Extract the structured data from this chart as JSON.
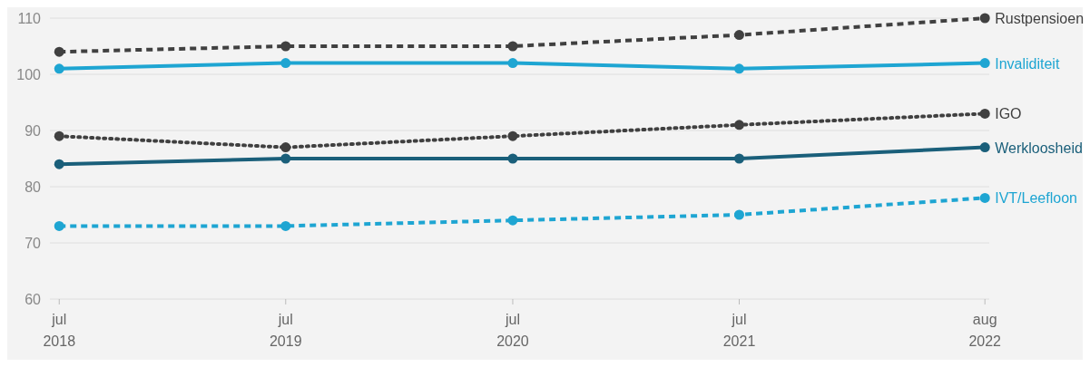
{
  "chart_data": {
    "type": "line",
    "x": [
      "2018-07",
      "2019-07",
      "2020-07",
      "2021-07",
      "2022-08"
    ],
    "xlim": [
      "2018-06-16",
      "2022-08-08"
    ],
    "xticks": [
      {
        "value": "2018-07",
        "label": "jul 2018"
      },
      {
        "value": "2019-07",
        "label": "jul 2019"
      },
      {
        "value": "2020-07",
        "label": "jul 2020"
      },
      {
        "value": "2021-07",
        "label": "jul 2021"
      },
      {
        "value": "2022-08",
        "label": "aug 2022"
      }
    ],
    "ylim": [
      60,
      110
    ],
    "yticks": [
      60,
      70,
      80,
      90,
      100,
      110
    ],
    "grid": "y",
    "marker": "circle",
    "series": [
      {
        "name": "Rustpensioen",
        "color": "#404040",
        "line_style": "dashed",
        "values": [
          104,
          105,
          105,
          107,
          110
        ]
      },
      {
        "name": "Invaliditeit",
        "color": "#1ea5d2",
        "line_style": "solid",
        "values": [
          101,
          102,
          102,
          101,
          102
        ]
      },
      {
        "name": "IGO",
        "color": "#404040",
        "line_style": "dotted",
        "values": [
          89,
          87,
          89,
          91,
          93
        ]
      },
      {
        "name": "Werkloosheid",
        "color": "#1a5f7a",
        "line_style": "solid",
        "values": [
          84,
          85,
          85,
          85,
          87
        ]
      },
      {
        "name": "IVT/Leefloon",
        "color": "#1ea5d2",
        "line_style": "dashed",
        "values": [
          73,
          73,
          74,
          75,
          78
        ]
      }
    ]
  }
}
